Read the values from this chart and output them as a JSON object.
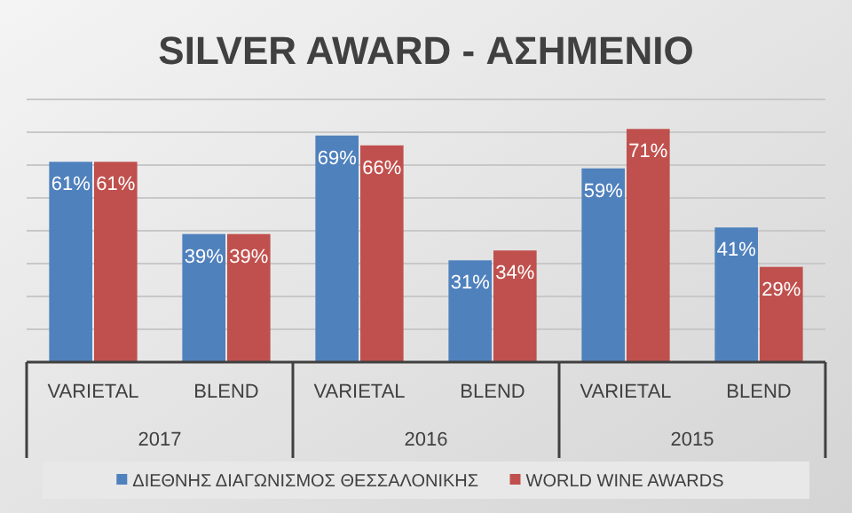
{
  "chart_data": {
    "type": "bar",
    "title": "SILVER AWARD - ΑΣΗΜΕΝΙΟ",
    "categories": [
      "VARIETAL",
      "BLEND",
      "VARIETAL",
      "BLEND",
      "VARIETAL",
      "BLEND"
    ],
    "annotations": [
      "2017",
      "2016",
      "2015"
    ],
    "series": [
      {
        "name": "ΔΙΕΘΝΗΣ ΔΙΑΓΩΝΙΣΜΟΣ ΘΕΣΣΑΛΟΝΙΚΗΣ",
        "color": "#4f81bd",
        "values": [
          61,
          39,
          69,
          31,
          59,
          41
        ],
        "value_labels": [
          "61%",
          "39%",
          "69%",
          "31%",
          "59%",
          "41%"
        ]
      },
      {
        "name": "WORLD WINE AWARDS",
        "color": "#c0504d",
        "values": [
          61,
          39,
          66,
          34,
          71,
          29
        ],
        "value_labels": [
          "61%",
          "39%",
          "66%",
          "34%",
          "71%",
          "29%"
        ]
      }
    ],
    "ylim": [
      0,
      80
    ],
    "yticks": [
      {
        "value": 0,
        "label": null
      },
      {
        "value": 10,
        "label": null
      },
      {
        "value": 20,
        "label": null
      },
      {
        "value": 30,
        "label": null
      },
      {
        "value": 40,
        "label": null
      },
      {
        "value": 50,
        "label": null
      },
      {
        "value": 60,
        "label": null
      },
      {
        "value": 70,
        "label": null
      },
      {
        "value": 80,
        "label": null
      }
    ],
    "grid": true,
    "legend": "bottom"
  }
}
